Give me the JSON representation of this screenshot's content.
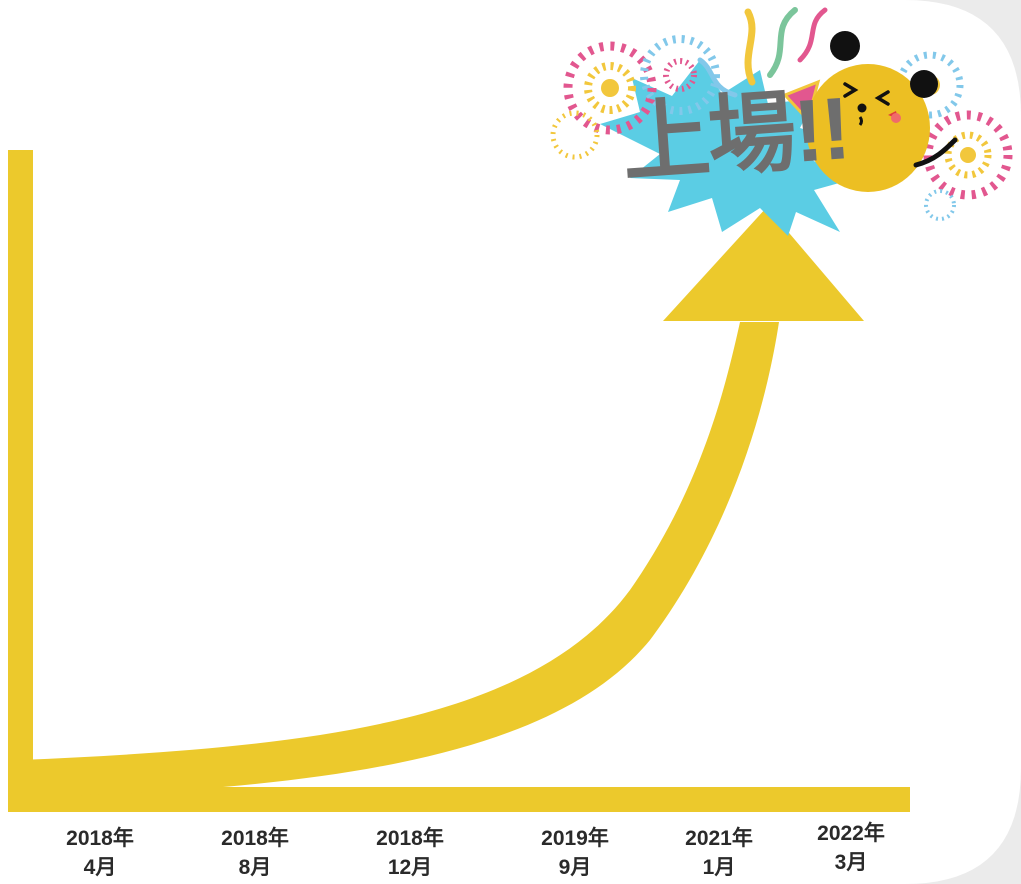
{
  "diagram": {
    "milestone_label": "上場!!",
    "timeline": [
      {
        "year": "2018年",
        "month": "4月"
      },
      {
        "year": "2018年",
        "month": "8月"
      },
      {
        "year": "2018年",
        "month": "12月"
      },
      {
        "year": "2019年",
        "month": "9月"
      },
      {
        "year": "2021年",
        "month": "1月"
      },
      {
        "year": "2022年",
        "month": "3月"
      }
    ],
    "colors": {
      "arrow": "#ecc92c",
      "burst": "#5bcde4",
      "label_text": "#6e6e6e",
      "mascot": "#ecbf23",
      "firework_pink": "#e2578f",
      "firework_blue": "#82c8ea",
      "firework_yellow": "#f2c73c",
      "background": "#ffffff",
      "frame": "#ebebeb"
    },
    "icons": [
      "fireworks-icon",
      "party-popper-icon",
      "mascot-character"
    ]
  }
}
